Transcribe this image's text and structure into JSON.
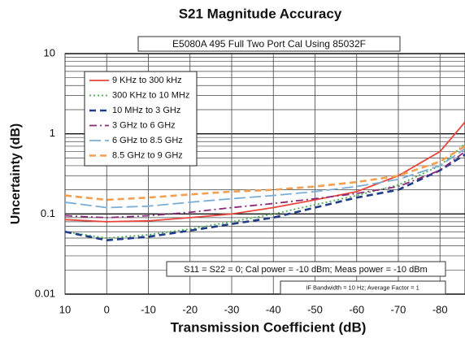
{
  "chart_data": {
    "type": "line",
    "title": "S21 Magnitude Accuracy",
    "subtitle": "E5080A 495 Full Two Port Cal Using 85032F",
    "xlabel": "Transmission Coefficient (dB)",
    "ylabel": "Uncertainty (dB)",
    "annotations": [
      "S11 = S22 = 0; Cal power = -10 dBm; Meas power = -10 dBm",
      "IF Bandwidth = 10 Hz; Average Factor = 1"
    ],
    "x": [
      10,
      0,
      -10,
      -20,
      -30,
      -40,
      -50,
      -60,
      -70,
      -80,
      -86
    ],
    "xlim": [
      10,
      -86
    ],
    "xticks": [
      10,
      0,
      -10,
      -20,
      -30,
      -40,
      -50,
      -60,
      -70,
      -80
    ],
    "ylim": [
      0.01,
      10
    ],
    "yticks": [
      0.01,
      0.1,
      1,
      10
    ],
    "log_y": true,
    "grid": true,
    "legend": "upper left",
    "series": [
      {
        "name": "9 KHz to 300 kHz",
        "color": "#e8463c",
        "dash": "solid",
        "values": [
          0.085,
          0.08,
          0.082,
          0.09,
          0.1,
          0.12,
          0.15,
          0.19,
          0.3,
          0.6,
          1.4
        ]
      },
      {
        "name": "300 KHz to 10 MHz",
        "color": "#4caf50",
        "dash": "dot",
        "values": [
          0.06,
          0.05,
          0.055,
          0.065,
          0.08,
          0.1,
          0.13,
          0.17,
          0.23,
          0.4,
          0.75
        ]
      },
      {
        "name": "10 MHz to 3 GHz",
        "color": "#1f3c88",
        "dash": "dash",
        "values": [
          0.06,
          0.047,
          0.052,
          0.062,
          0.075,
          0.09,
          0.12,
          0.16,
          0.2,
          0.35,
          0.55
        ]
      },
      {
        "name": "3 GHz to 6 GHz",
        "color": "#8b2a7a",
        "dash": "dashdot",
        "values": [
          0.095,
          0.09,
          0.095,
          0.105,
          0.12,
          0.135,
          0.155,
          0.18,
          0.22,
          0.35,
          0.6
        ]
      },
      {
        "name": "6 GHz to 8.5 GHz",
        "color": "#7aaed6",
        "dash": "longdash",
        "values": [
          0.14,
          0.12,
          0.125,
          0.14,
          0.155,
          0.17,
          0.19,
          0.22,
          0.27,
          0.4,
          0.65
        ]
      },
      {
        "name": "8.5 GHz to 9 GHz",
        "color": "#f0a050",
        "dash": "dash",
        "values": [
          0.17,
          0.15,
          0.16,
          0.175,
          0.19,
          0.2,
          0.22,
          0.25,
          0.3,
          0.45,
          0.7
        ]
      }
    ]
  }
}
